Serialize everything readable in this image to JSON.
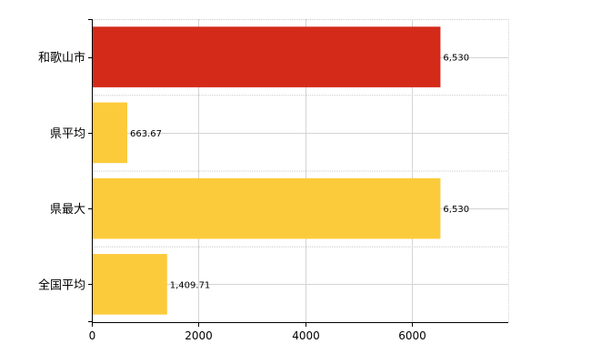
{
  "chart_data": {
    "type": "bar",
    "orientation": "horizontal",
    "categories": [
      "和歌山市",
      "県平均",
      "県最大",
      "全国平均"
    ],
    "values": [
      6530,
      663.67,
      6530,
      1409.71
    ],
    "value_labels": [
      "6,530",
      "663.67",
      "6,530",
      "1,409.71"
    ],
    "bar_colors": [
      "#d42a1a",
      "#fccb3c",
      "#fccb3c",
      "#fccb3c"
    ],
    "x_ticks": [
      0,
      2000,
      4000,
      6000
    ],
    "x_tick_labels": [
      "0",
      "2000",
      "4000",
      "6000"
    ],
    "xlim": [
      0,
      7800
    ],
    "grid": true,
    "title": "",
    "xlabel": "",
    "ylabel": ""
  }
}
